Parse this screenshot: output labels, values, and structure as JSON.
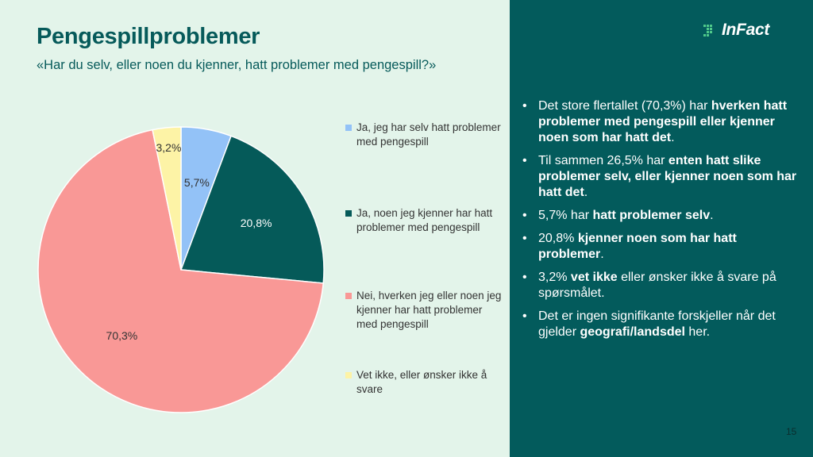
{
  "title": "Pengespillproblemer",
  "subtitle": "«Har du selv, eller noen du kjenner, hatt problemer med pengespill?»",
  "logo": {
    "text": "InFact",
    "icon": "infact-logo-icon"
  },
  "page_number": "15",
  "colors": {
    "left_bg": "#e3f4ea",
    "right_bg": "#035b5c",
    "accent": "#065a5a"
  },
  "chart_data": {
    "type": "pie",
    "title": "",
    "start_angle_deg": 0,
    "direction": "clockwise",
    "slices": [
      {
        "legend": "Ja, jeg har selv hatt problemer med pengespill",
        "value": 5.7,
        "label": "5,7%",
        "color": "#93c2f7"
      },
      {
        "legend": "Ja, noen jeg kjenner har hatt problemer med pengespill",
        "value": 20.8,
        "label": "20,8%",
        "color": "#055a59"
      },
      {
        "legend": "Nei, hverken jeg eller noen jeg kjenner har hatt problemer med pengespill",
        "value": 70.3,
        "label": "70,3%",
        "color": "#f99896"
      },
      {
        "legend": "Vet ikke, eller ønsker ikke å svare",
        "value": 3.2,
        "label": "3,2%",
        "color": "#fdf3a6"
      }
    ],
    "legend_placement": "right"
  },
  "bullet_glyph": "•",
  "bullets": [
    [
      {
        "t": "Det store flertallet (70,3%) har "
      },
      {
        "t": "hverken hatt problemer med pengespill eller kjenner noen som har hatt det",
        "b": true
      },
      {
        "t": "."
      }
    ],
    [
      {
        "t": "Til sammen 26,5% har "
      },
      {
        "t": "enten hatt slike problemer selv, eller kjenner noen som har hatt det",
        "b": true
      },
      {
        "t": "."
      }
    ],
    [
      {
        "t": "5,7% har "
      },
      {
        "t": "hatt problemer selv",
        "b": true
      },
      {
        "t": "."
      }
    ],
    [
      {
        "t": "20,8% "
      },
      {
        "t": "kjenner noen som har hatt problemer",
        "b": true
      },
      {
        "t": "."
      }
    ],
    [
      {
        "t": "3,2% "
      },
      {
        "t": "vet ikke",
        "b": true
      },
      {
        "t": " eller ønsker ikke å svare på spørsmålet."
      }
    ],
    [
      {
        "t": "Det er ingen signifikante forskjeller når det gjelder "
      },
      {
        "t": "geografi/landsdel",
        "b": true
      },
      {
        "t": " her."
      }
    ]
  ]
}
